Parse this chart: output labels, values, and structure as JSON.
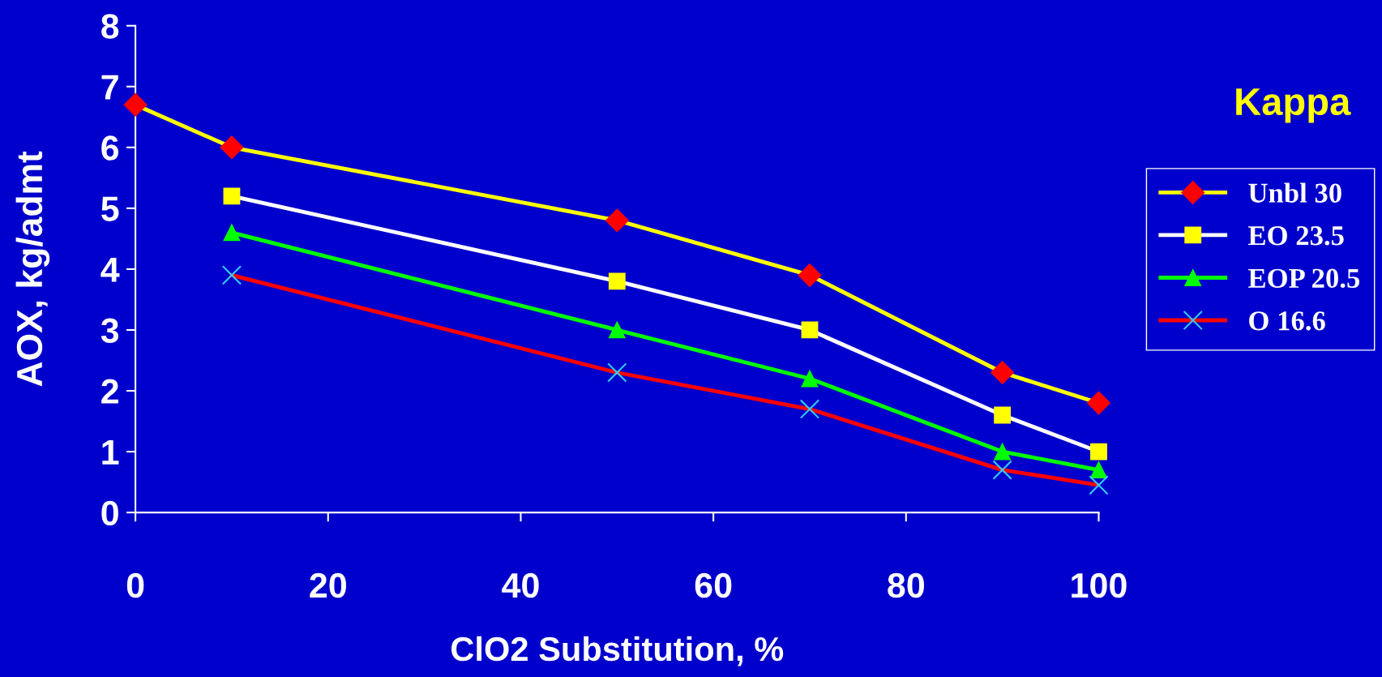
{
  "chart_data": {
    "type": "line",
    "xlabel": "ClO2 Substitution, %",
    "ylabel": "AOX, kg/admt",
    "legend_title": "Kappa",
    "x": [
      0,
      10,
      50,
      70,
      90,
      100
    ],
    "series": [
      {
        "name": "Unbl 30",
        "color": "#ffff00",
        "marker": "diamond",
        "colors": [
          "#ff0000",
          "#ff0000",
          "#ff0000",
          "#ff0000",
          "#ff0000",
          "#ff0000"
        ],
        "values": [
          6.7,
          6.0,
          4.8,
          3.9,
          2.3,
          1.8
        ]
      },
      {
        "name": "EO 23.5",
        "color": "#ffffff",
        "marker": "square",
        "colors": [
          "#ffff00",
          "#ffff00",
          "#ffff00",
          "#ffff00",
          "#ffff00",
          "#ffff00"
        ],
        "values": [
          null,
          5.2,
          3.8,
          3.0,
          1.6,
          1.0
        ]
      },
      {
        "name": "EOP 20.5",
        "color": "#00ff00",
        "marker": "triangle",
        "colors": [
          "#00ff00",
          "#00ff00",
          "#00ff00",
          "#00ff00",
          "#00ff00",
          "#00ff00"
        ],
        "values": [
          null,
          4.6,
          3.0,
          2.2,
          1.0,
          0.7
        ]
      },
      {
        "name": "O 16.6",
        "color": "#ff0000",
        "marker": "cross",
        "colors": [
          "#33ccff",
          "#33ccff",
          "#33ccff",
          "#33ccff",
          "#33ccff",
          "#33ccff"
        ],
        "values": [
          null,
          3.9,
          2.3,
          1.7,
          0.7,
          0.45
        ]
      }
    ],
    "xlim": [
      0,
      100
    ],
    "xticks": [
      0,
      20,
      40,
      60,
      80,
      100
    ],
    "ylim": [
      0,
      8
    ],
    "yticks": [
      0,
      1,
      2,
      3,
      4,
      5,
      6,
      7,
      8
    ],
    "grid": false,
    "legend": "right"
  }
}
